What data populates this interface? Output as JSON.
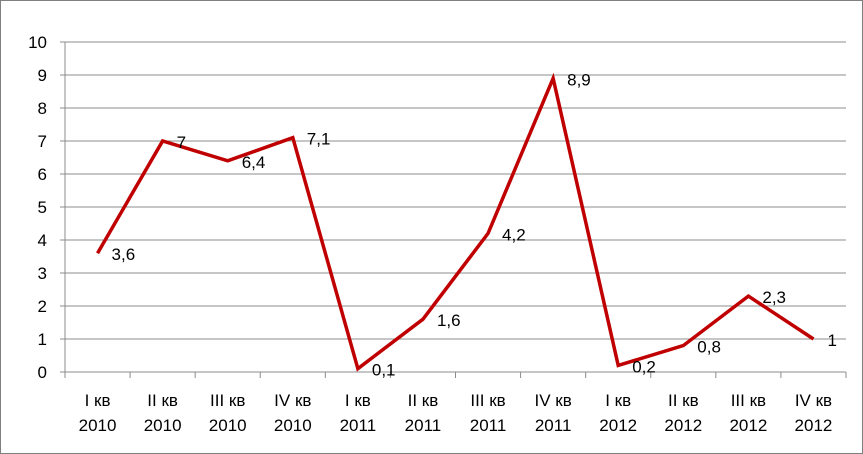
{
  "chart_data": {
    "type": "line",
    "title": "",
    "xlabel": "",
    "ylabel": "",
    "ylim": [
      0,
      10
    ],
    "yticks": [
      0,
      1,
      2,
      3,
      4,
      5,
      6,
      7,
      8,
      9,
      10
    ],
    "grid": true,
    "legend": "none",
    "line_color": "#c00000",
    "categories": [
      [
        "I кв",
        "2010"
      ],
      [
        "II кв",
        "2010"
      ],
      [
        "III кв",
        "2010"
      ],
      [
        "IV кв",
        "2010"
      ],
      [
        "I кв",
        "2011"
      ],
      [
        "II кв",
        "2011"
      ],
      [
        "III кв",
        "2011"
      ],
      [
        "IV кв",
        "2011"
      ],
      [
        "I кв",
        "2012"
      ],
      [
        "II кв",
        "2012"
      ],
      [
        "III кв",
        "2012"
      ],
      [
        "IV кв",
        "2012"
      ]
    ],
    "values": [
      3.6,
      7,
      6.4,
      7.1,
      0.1,
      1.6,
      4.2,
      8.9,
      0.2,
      0.8,
      2.3,
      1
    ],
    "data_labels": [
      "3,6",
      "7",
      "6,4",
      "7,1",
      "0,1",
      "1,6",
      "4,2",
      "8,9",
      "0,2",
      "0,8",
      "2,3",
      "1"
    ]
  }
}
